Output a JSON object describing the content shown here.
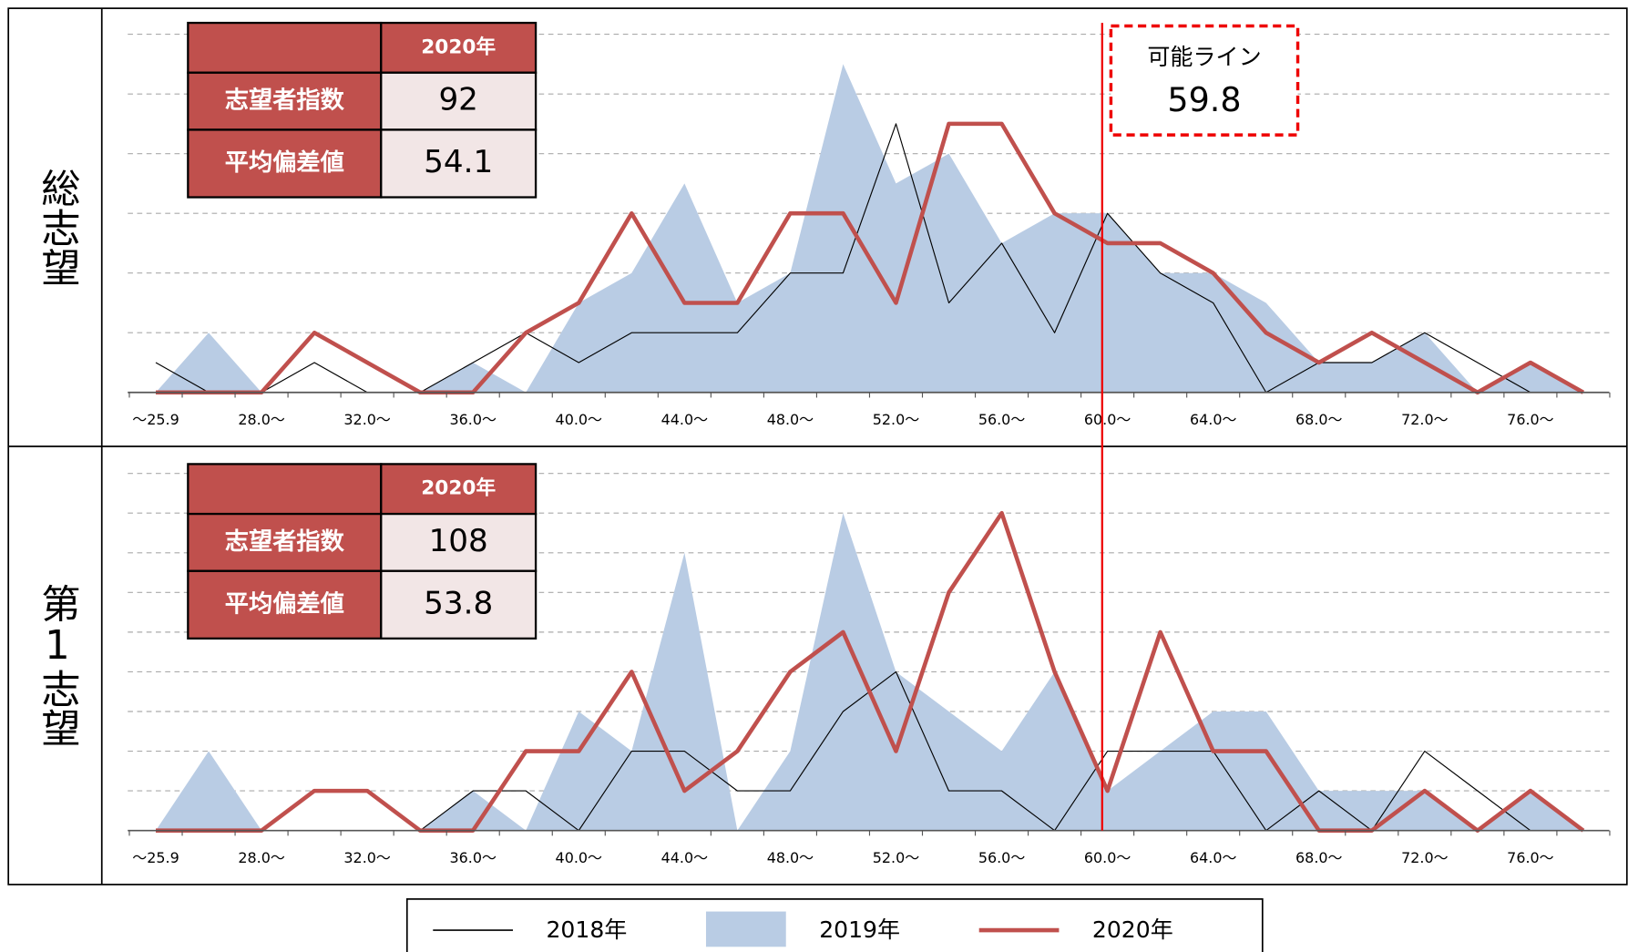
{
  "chart_data": [
    {
      "type": "line",
      "title": "総志望",
      "categories": [
        "～25.9",
        null,
        "28.0～",
        null,
        "32.0～",
        null,
        "36.0～",
        null,
        "40.0～",
        null,
        "44.0～",
        null,
        "48.0～",
        null,
        "52.0～",
        null,
        "56.0～",
        null,
        "60.0～",
        null,
        "64.0～",
        null,
        "68.0～",
        null,
        "72.0～",
        null,
        "76.0～",
        null
      ],
      "series": [
        {
          "name": "2018年",
          "style": "line",
          "color": "#000000",
          "values": [
            1,
            0,
            0,
            1,
            0,
            0,
            1,
            2,
            1,
            2,
            2,
            2,
            4,
            4,
            9,
            3,
            5,
            2,
            6,
            4,
            3,
            0,
            1,
            1,
            2,
            1,
            0,
            0
          ]
        },
        {
          "name": "2019年",
          "style": "area",
          "color": "#b9cce4",
          "values": [
            0,
            2,
            0,
            0,
            0,
            0,
            1,
            0,
            3,
            4,
            7,
            3,
            4,
            11,
            7,
            8,
            5,
            6,
            6,
            4,
            4,
            3,
            1,
            1,
            2,
            0,
            1,
            0
          ]
        },
        {
          "name": "2020年",
          "style": "line",
          "color": "#c0504d",
          "values": [
            0,
            0,
            0,
            2,
            1,
            0,
            0,
            2,
            3,
            6,
            3,
            3,
            6,
            6,
            3,
            9,
            9,
            6,
            5,
            5,
            4,
            2,
            1,
            2,
            1,
            0,
            1,
            0
          ]
        }
      ],
      "ylim": [
        0,
        12
      ],
      "ygrid": [
        2,
        4,
        6,
        8,
        10,
        12
      ],
      "grid": true,
      "table": {
        "header": "2020年",
        "rows": [
          {
            "label": "志望者指数",
            "value": 92
          },
          {
            "label": "平均偏差値",
            "value": 54.1
          }
        ]
      },
      "reference_line": {
        "label": "可能ライン",
        "value": 59.8
      }
    },
    {
      "type": "line",
      "title": "第1志望",
      "categories": [
        "～25.9",
        null,
        "28.0～",
        null,
        "32.0～",
        null,
        "36.0～",
        null,
        "40.0～",
        null,
        "44.0～",
        null,
        "48.0～",
        null,
        "52.0～",
        null,
        "56.0～",
        null,
        "60.0～",
        null,
        "64.0～",
        null,
        "68.0～",
        null,
        "72.0～",
        null,
        "76.0～",
        null
      ],
      "series": [
        {
          "name": "2018年",
          "style": "line",
          "color": "#000000",
          "values": [
            0,
            0,
            0,
            0,
            0,
            0,
            2,
            2,
            0,
            4,
            4,
            2,
            2,
            6,
            8,
            2,
            2,
            0,
            4,
            4,
            4,
            0,
            2,
            0,
            4,
            2,
            0,
            0
          ]
        },
        {
          "name": "2019年",
          "style": "area",
          "color": "#b9cce4",
          "values": [
            0,
            4,
            0,
            0,
            0,
            0,
            2,
            0,
            6,
            4,
            14,
            0,
            4,
            16,
            8,
            6,
            4,
            8,
            2,
            4,
            6,
            6,
            2,
            2,
            2,
            0,
            2,
            0
          ]
        },
        {
          "name": "2020年",
          "style": "line",
          "color": "#c0504d",
          "values": [
            0,
            0,
            0,
            2,
            2,
            0,
            0,
            4,
            4,
            8,
            2,
            4,
            8,
            10,
            4,
            12,
            16,
            8,
            2,
            10,
            4,
            4,
            0,
            0,
            2,
            0,
            2,
            0
          ]
        }
      ],
      "ylim": [
        0,
        18
      ],
      "ygrid": [
        2,
        4,
        6,
        8,
        10,
        12,
        14,
        16,
        18
      ],
      "grid": true,
      "table": {
        "header": "2020年",
        "rows": [
          {
            "label": "志望者指数",
            "value": 108
          },
          {
            "label": "平均偏差値",
            "value": 53.8
          }
        ]
      }
    }
  ]
}
